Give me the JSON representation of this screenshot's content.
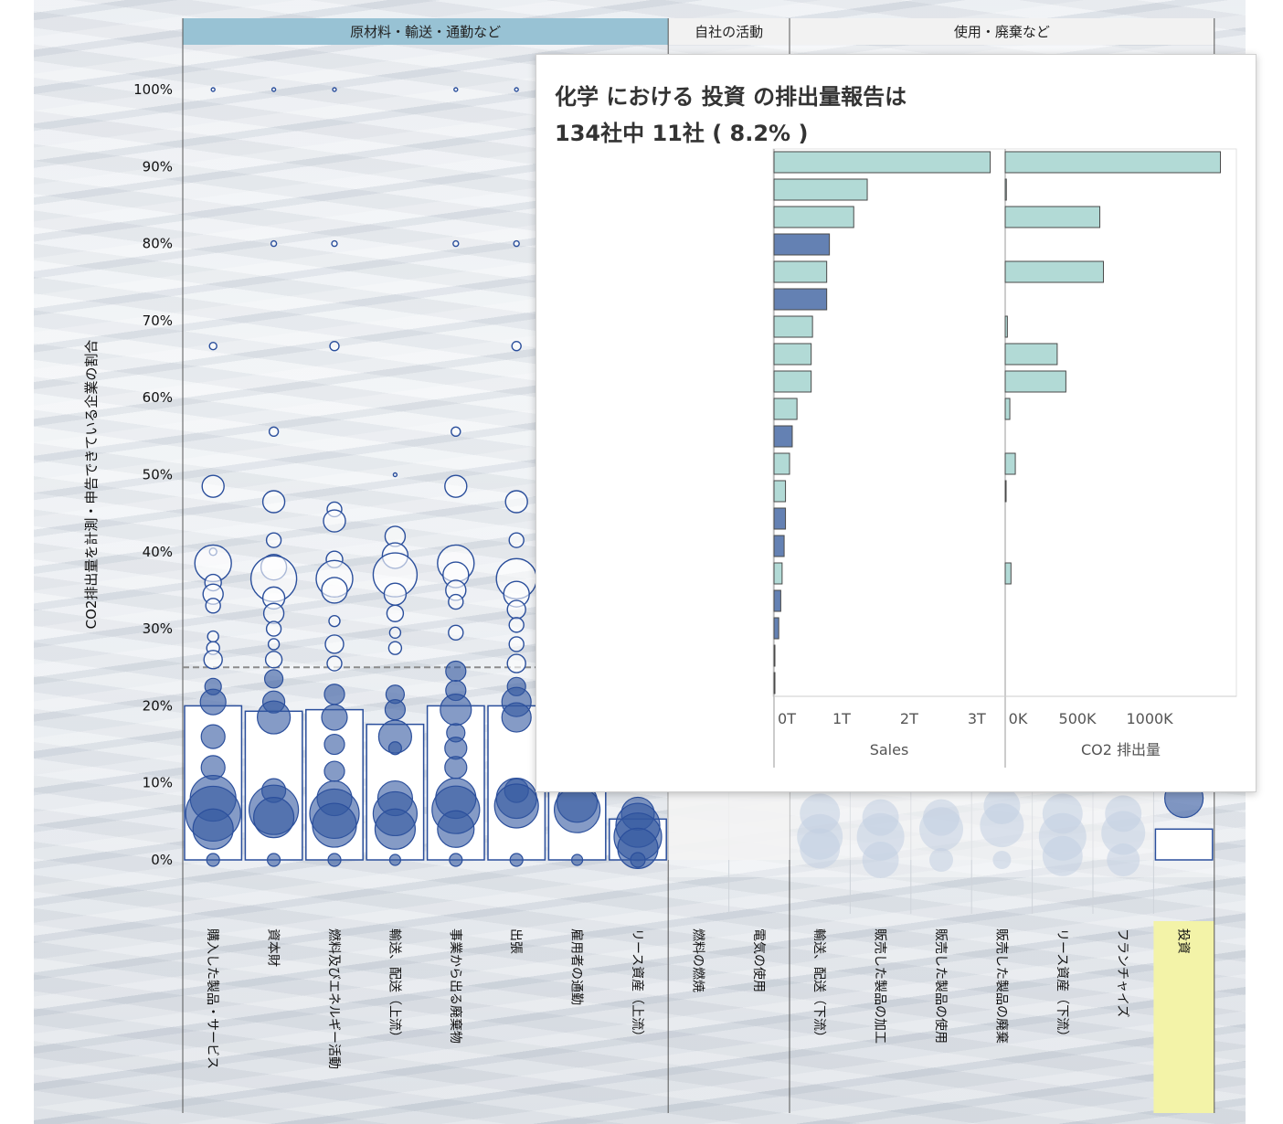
{
  "background_color": "#dfe4ea",
  "header_colors": {
    "upstream": "#98c2d4",
    "company": "#f2f2f2",
    "downstream": "#f2f2f2"
  },
  "headers": {
    "upstream": "原材料・輸送・通勤など",
    "company": "自社の活動",
    "downstream": "使用・廃棄など"
  },
  "y_axis": {
    "label": "CO2排出量を計測・申告できている企業の割合",
    "ticks": [
      "0%",
      "10%",
      "20%",
      "30%",
      "40%",
      "50%",
      "60%",
      "70%",
      "80%",
      "90%",
      "100%"
    ]
  },
  "categories": [
    "購入した製品・サービス",
    "資本財",
    "燃料及びエネルギー活動",
    "輸送、配送（上流）",
    "事業から出る廃棄物",
    "出張",
    "雇用者の通勤",
    "リース資産（上流）",
    "燃料の燃焼",
    "電気の使用",
    "輸送、配送（下流）",
    "販売した製品の加工",
    "販売した製品の使用",
    "販売した製品の廃棄",
    "リース資産（下流）",
    "フランチャイズ",
    "投資"
  ],
  "highlighted_category": "投資",
  "highlight_color": "#f3f3a8",
  "colors": {
    "reported": "#3358a0",
    "unreported": "#ffffff",
    "circle_stroke": "#2b4f9c",
    "bar_light": "#b2dad6",
    "bar_dark": "#6481b3",
    "reference_line": "#8c8c8c"
  },
  "chart_data": {
    "type": "scatter",
    "title": "",
    "xlabel": "",
    "ylabel": "CO2排出量を計測・申告できている企業の割合",
    "ylim": [
      0,
      1.05
    ],
    "reference_line": 0.25,
    "bar_values": [
      0.2,
      0.193,
      0.195,
      0.176,
      0.2,
      0.2,
      0.09,
      0.053,
      0.0,
      0.0,
      0.0,
      0.0,
      0.0,
      0.0,
      0.0,
      0.0,
      0.04
    ],
    "points": [
      {
        "cat": 0,
        "y": 1.0,
        "r": 2
      },
      {
        "cat": 0,
        "y": 0.667,
        "r": 4
      },
      {
        "cat": 0,
        "y": 0.485,
        "r": 12
      },
      {
        "cat": 0,
        "y": 0.4,
        "r": 4
      },
      {
        "cat": 0,
        "y": 0.385,
        "r": 20
      },
      {
        "cat": 0,
        "y": 0.36,
        "r": 9
      },
      {
        "cat": 0,
        "y": 0.345,
        "r": 11
      },
      {
        "cat": 0,
        "y": 0.33,
        "r": 8
      },
      {
        "cat": 0,
        "y": 0.29,
        "r": 6
      },
      {
        "cat": 0,
        "y": 0.275,
        "r": 7
      },
      {
        "cat": 0,
        "y": 0.26,
        "r": 10
      },
      {
        "cat": 0,
        "y": 0.225,
        "r": 9,
        "filled": true
      },
      {
        "cat": 0,
        "y": 0.205,
        "r": 14,
        "filled": true
      },
      {
        "cat": 0,
        "y": 0.16,
        "r": 13,
        "filled": true
      },
      {
        "cat": 0,
        "y": 0.12,
        "r": 13,
        "filled": true
      },
      {
        "cat": 0,
        "y": 0.08,
        "r": 25,
        "filled": true
      },
      {
        "cat": 0,
        "y": 0.06,
        "r": 30,
        "filled": true
      },
      {
        "cat": 0,
        "y": 0.04,
        "r": 22,
        "filled": true
      },
      {
        "cat": 0,
        "y": 0.0,
        "r": 7,
        "filled": true
      },
      {
        "cat": 1,
        "y": 1.0,
        "r": 2
      },
      {
        "cat": 1,
        "y": 0.8,
        "r": 3
      },
      {
        "cat": 1,
        "y": 0.556,
        "r": 5
      },
      {
        "cat": 1,
        "y": 0.465,
        "r": 12
      },
      {
        "cat": 1,
        "y": 0.415,
        "r": 8
      },
      {
        "cat": 1,
        "y": 0.38,
        "r": 14
      },
      {
        "cat": 1,
        "y": 0.365,
        "r": 25
      },
      {
        "cat": 1,
        "y": 0.34,
        "r": 12
      },
      {
        "cat": 1,
        "y": 0.32,
        "r": 11
      },
      {
        "cat": 1,
        "y": 0.3,
        "r": 8
      },
      {
        "cat": 1,
        "y": 0.28,
        "r": 6
      },
      {
        "cat": 1,
        "y": 0.26,
        "r": 9
      },
      {
        "cat": 1,
        "y": 0.235,
        "r": 10,
        "filled": true
      },
      {
        "cat": 1,
        "y": 0.205,
        "r": 12,
        "filled": true
      },
      {
        "cat": 1,
        "y": 0.185,
        "r": 18,
        "filled": true
      },
      {
        "cat": 1,
        "y": 0.09,
        "r": 13,
        "filled": true
      },
      {
        "cat": 1,
        "y": 0.065,
        "r": 27,
        "filled": true
      },
      {
        "cat": 1,
        "y": 0.055,
        "r": 22,
        "filled": true
      },
      {
        "cat": 1,
        "y": 0.0,
        "r": 7,
        "filled": true
      },
      {
        "cat": 2,
        "y": 1.0,
        "r": 2
      },
      {
        "cat": 2,
        "y": 0.8,
        "r": 3
      },
      {
        "cat": 2,
        "y": 0.667,
        "r": 5
      },
      {
        "cat": 2,
        "y": 0.455,
        "r": 8
      },
      {
        "cat": 2,
        "y": 0.44,
        "r": 12
      },
      {
        "cat": 2,
        "y": 0.39,
        "r": 9
      },
      {
        "cat": 2,
        "y": 0.365,
        "r": 20
      },
      {
        "cat": 2,
        "y": 0.35,
        "r": 14
      },
      {
        "cat": 2,
        "y": 0.31,
        "r": 6
      },
      {
        "cat": 2,
        "y": 0.28,
        "r": 10
      },
      {
        "cat": 2,
        "y": 0.255,
        "r": 8
      },
      {
        "cat": 2,
        "y": 0.215,
        "r": 11,
        "filled": true
      },
      {
        "cat": 2,
        "y": 0.185,
        "r": 14,
        "filled": true
      },
      {
        "cat": 2,
        "y": 0.15,
        "r": 11,
        "filled": true
      },
      {
        "cat": 2,
        "y": 0.115,
        "r": 11,
        "filled": true
      },
      {
        "cat": 2,
        "y": 0.08,
        "r": 19,
        "filled": true
      },
      {
        "cat": 2,
        "y": 0.06,
        "r": 27,
        "filled": true
      },
      {
        "cat": 2,
        "y": 0.045,
        "r": 24,
        "filled": true
      },
      {
        "cat": 2,
        "y": 0.0,
        "r": 7,
        "filled": true
      },
      {
        "cat": 3,
        "y": 0.5,
        "r": 2
      },
      {
        "cat": 3,
        "y": 0.42,
        "r": 11
      },
      {
        "cat": 3,
        "y": 0.395,
        "r": 14
      },
      {
        "cat": 3,
        "y": 0.37,
        "r": 24
      },
      {
        "cat": 3,
        "y": 0.345,
        "r": 12
      },
      {
        "cat": 3,
        "y": 0.32,
        "r": 9
      },
      {
        "cat": 3,
        "y": 0.295,
        "r": 6
      },
      {
        "cat": 3,
        "y": 0.275,
        "r": 7
      },
      {
        "cat": 3,
        "y": 0.215,
        "r": 10,
        "filled": true
      },
      {
        "cat": 3,
        "y": 0.195,
        "r": 11,
        "filled": true
      },
      {
        "cat": 3,
        "y": 0.16,
        "r": 18,
        "filled": true
      },
      {
        "cat": 3,
        "y": 0.145,
        "r": 7,
        "filled": true
      },
      {
        "cat": 3,
        "y": 0.08,
        "r": 19,
        "filled": true
      },
      {
        "cat": 3,
        "y": 0.06,
        "r": 24,
        "filled": true
      },
      {
        "cat": 3,
        "y": 0.04,
        "r": 22,
        "filled": true
      },
      {
        "cat": 3,
        "y": 0.0,
        "r": 6,
        "filled": true
      },
      {
        "cat": 4,
        "y": 1.0,
        "r": 2
      },
      {
        "cat": 4,
        "y": 0.8,
        "r": 3
      },
      {
        "cat": 4,
        "y": 0.556,
        "r": 5
      },
      {
        "cat": 4,
        "y": 0.485,
        "r": 12
      },
      {
        "cat": 4,
        "y": 0.385,
        "r": 20
      },
      {
        "cat": 4,
        "y": 0.37,
        "r": 14
      },
      {
        "cat": 4,
        "y": 0.35,
        "r": 11
      },
      {
        "cat": 4,
        "y": 0.335,
        "r": 8
      },
      {
        "cat": 4,
        "y": 0.295,
        "r": 8
      },
      {
        "cat": 4,
        "y": 0.245,
        "r": 11,
        "filled": true
      },
      {
        "cat": 4,
        "y": 0.22,
        "r": 11,
        "filled": true
      },
      {
        "cat": 4,
        "y": 0.195,
        "r": 17,
        "filled": true
      },
      {
        "cat": 4,
        "y": 0.165,
        "r": 10,
        "filled": true
      },
      {
        "cat": 4,
        "y": 0.145,
        "r": 12,
        "filled": true
      },
      {
        "cat": 4,
        "y": 0.12,
        "r": 12,
        "filled": true
      },
      {
        "cat": 4,
        "y": 0.08,
        "r": 22,
        "filled": true
      },
      {
        "cat": 4,
        "y": 0.065,
        "r": 26,
        "filled": true
      },
      {
        "cat": 4,
        "y": 0.04,
        "r": 20,
        "filled": true
      },
      {
        "cat": 4,
        "y": 0.0,
        "r": 7,
        "filled": true
      },
      {
        "cat": 5,
        "y": 1.0,
        "r": 2
      },
      {
        "cat": 5,
        "y": 0.8,
        "r": 3
      },
      {
        "cat": 5,
        "y": 0.667,
        "r": 5
      },
      {
        "cat": 5,
        "y": 0.465,
        "r": 12
      },
      {
        "cat": 5,
        "y": 0.415,
        "r": 8
      },
      {
        "cat": 5,
        "y": 0.365,
        "r": 22
      },
      {
        "cat": 5,
        "y": 0.345,
        "r": 14
      },
      {
        "cat": 5,
        "y": 0.325,
        "r": 10
      },
      {
        "cat": 5,
        "y": 0.305,
        "r": 8
      },
      {
        "cat": 5,
        "y": 0.28,
        "r": 8
      },
      {
        "cat": 5,
        "y": 0.255,
        "r": 10
      },
      {
        "cat": 5,
        "y": 0.225,
        "r": 10,
        "filled": true
      },
      {
        "cat": 5,
        "y": 0.205,
        "r": 16,
        "filled": true
      },
      {
        "cat": 5,
        "y": 0.185,
        "r": 16,
        "filled": true
      },
      {
        "cat": 5,
        "y": 0.09,
        "r": 13,
        "filled": true
      },
      {
        "cat": 5,
        "y": 0.08,
        "r": 22,
        "filled": true
      },
      {
        "cat": 5,
        "y": 0.07,
        "r": 24,
        "filled": true
      },
      {
        "cat": 5,
        "y": 0.0,
        "r": 7,
        "filled": true
      },
      {
        "cat": 6,
        "y": 0.075,
        "r": 22,
        "filled": true
      },
      {
        "cat": 6,
        "y": 0.065,
        "r": 25,
        "filled": true
      },
      {
        "cat": 6,
        "y": 0.0,
        "r": 6,
        "filled": true
      },
      {
        "cat": 7,
        "y": 0.06,
        "r": 18,
        "filled": true
      },
      {
        "cat": 7,
        "y": 0.045,
        "r": 24,
        "filled": true
      },
      {
        "cat": 7,
        "y": 0.03,
        "r": 26,
        "filled": true
      },
      {
        "cat": 7,
        "y": 0.015,
        "r": 22,
        "filled": true
      },
      {
        "cat": 7,
        "y": 0.0,
        "r": 8,
        "filled": true
      },
      {
        "cat": 10,
        "y": 0.06,
        "r": 22,
        "faded": true
      },
      {
        "cat": 10,
        "y": 0.03,
        "r": 25,
        "faded": true
      },
      {
        "cat": 10,
        "y": 0.015,
        "r": 22,
        "faded": true
      },
      {
        "cat": 11,
        "y": 0.055,
        "r": 20,
        "faded": true
      },
      {
        "cat": 11,
        "y": 0.03,
        "r": 26,
        "faded": true
      },
      {
        "cat": 11,
        "y": 0.0,
        "r": 20,
        "faded": true
      },
      {
        "cat": 12,
        "y": 0.055,
        "r": 20,
        "faded": true
      },
      {
        "cat": 12,
        "y": 0.04,
        "r": 24,
        "faded": true
      },
      {
        "cat": 12,
        "y": 0.0,
        "r": 13,
        "faded": true
      },
      {
        "cat": 13,
        "y": 0.07,
        "r": 20,
        "faded": true
      },
      {
        "cat": 13,
        "y": 0.045,
        "r": 24,
        "faded": true
      },
      {
        "cat": 13,
        "y": 0.0,
        "r": 10,
        "faded": true
      },
      {
        "cat": 14,
        "y": 0.06,
        "r": 22,
        "faded": true
      },
      {
        "cat": 14,
        "y": 0.03,
        "r": 26,
        "faded": true
      },
      {
        "cat": 14,
        "y": 0.005,
        "r": 22,
        "faded": true
      },
      {
        "cat": 15,
        "y": 0.06,
        "r": 20,
        "faded": true
      },
      {
        "cat": 15,
        "y": 0.035,
        "r": 24,
        "faded": true
      },
      {
        "cat": 15,
        "y": 0.0,
        "r": 18,
        "faded": true
      },
      {
        "cat": 16,
        "y": 0.08,
        "r": 21,
        "filled": true
      }
    ]
  },
  "tooltip": {
    "title_line1": "化学 における 投資 の排出量報告は",
    "title_line2": "134社中 11社 ( 8.2% )",
    "chart_data": {
      "type": "bar",
      "panels": [
        {
          "xlabel": "Sales",
          "ticks": [
            "0T",
            "1T",
            "2T",
            "3T"
          ],
          "tick_values": [
            0,
            1,
            2,
            3
          ],
          "xmax": 3.3
        },
        {
          "xlabel": "CO2 排出量",
          "ticks": [
            "0K",
            "500K",
            "1000K"
          ],
          "tick_values": [
            0,
            500,
            1000
          ],
          "xmax": 1550
        }
      ],
      "rows": [
        {
          "sales": 3.2,
          "co2": 1490,
          "dark": false
        },
        {
          "sales": 1.38,
          "co2": 8,
          "dark": false
        },
        {
          "sales": 1.18,
          "co2": 655,
          "dark": false
        },
        {
          "sales": 0.82,
          "co2": null,
          "dark": true
        },
        {
          "sales": 0.78,
          "co2": 680,
          "dark": false
        },
        {
          "sales": 0.78,
          "co2": null,
          "dark": true
        },
        {
          "sales": 0.57,
          "co2": 15,
          "dark": false
        },
        {
          "sales": 0.55,
          "co2": 360,
          "dark": false
        },
        {
          "sales": 0.55,
          "co2": 420,
          "dark": false
        },
        {
          "sales": 0.34,
          "co2": 32,
          "dark": false
        },
        {
          "sales": 0.27,
          "co2": null,
          "dark": true
        },
        {
          "sales": 0.23,
          "co2": 70,
          "dark": false
        },
        {
          "sales": 0.17,
          "co2": 6,
          "dark": false
        },
        {
          "sales": 0.17,
          "co2": null,
          "dark": true
        },
        {
          "sales": 0.15,
          "co2": null,
          "dark": true
        },
        {
          "sales": 0.12,
          "co2": 40,
          "dark": false
        },
        {
          "sales": 0.1,
          "co2": null,
          "dark": true
        },
        {
          "sales": 0.07,
          "co2": null,
          "dark": true
        },
        {
          "sales": 0.01,
          "co2": null,
          "dark": true
        },
        {
          "sales": 0.005,
          "co2": null,
          "dark": true
        }
      ]
    }
  }
}
